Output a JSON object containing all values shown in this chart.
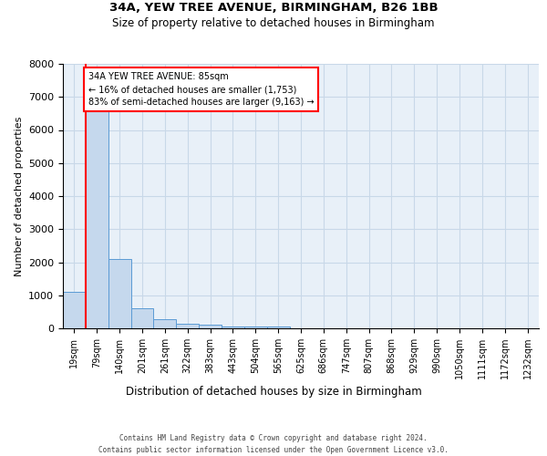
{
  "title1": "34A, YEW TREE AVENUE, BIRMINGHAM, B26 1BB",
  "title2": "Size of property relative to detached houses in Birmingham",
  "xlabel": "Distribution of detached houses by size in Birmingham",
  "ylabel": "Number of detached properties",
  "bin_labels": [
    "19sqm",
    "79sqm",
    "140sqm",
    "201sqm",
    "261sqm",
    "322sqm",
    "383sqm",
    "443sqm",
    "504sqm",
    "565sqm",
    "625sqm",
    "686sqm",
    "747sqm",
    "807sqm",
    "868sqm",
    "929sqm",
    "990sqm",
    "1050sqm",
    "1111sqm",
    "1172sqm",
    "1232sqm"
  ],
  "bar_heights": [
    1100,
    6600,
    2100,
    600,
    280,
    140,
    100,
    60,
    50,
    50,
    0,
    0,
    0,
    0,
    0,
    0,
    0,
    0,
    0,
    0,
    0
  ],
  "bar_color": "#c5d8ed",
  "bar_edge_color": "#5b9bd5",
  "annotation_text": "34A YEW TREE AVENUE: 85sqm\n← 16% of detached houses are smaller (1,753)\n83% of semi-detached houses are larger (9,163) →",
  "annotation_box_color": "white",
  "annotation_border_color": "red",
  "property_line_color": "red",
  "footer_line1": "Contains HM Land Registry data © Crown copyright and database right 2024.",
  "footer_line2": "Contains public sector information licensed under the Open Government Licence v3.0.",
  "ylim": [
    0,
    8000
  ],
  "yticks": [
    0,
    1000,
    2000,
    3000,
    4000,
    5000,
    6000,
    7000,
    8000
  ],
  "grid_color": "#c8d8e8",
  "background_color": "#e8f0f8",
  "property_line_x": 1.0
}
